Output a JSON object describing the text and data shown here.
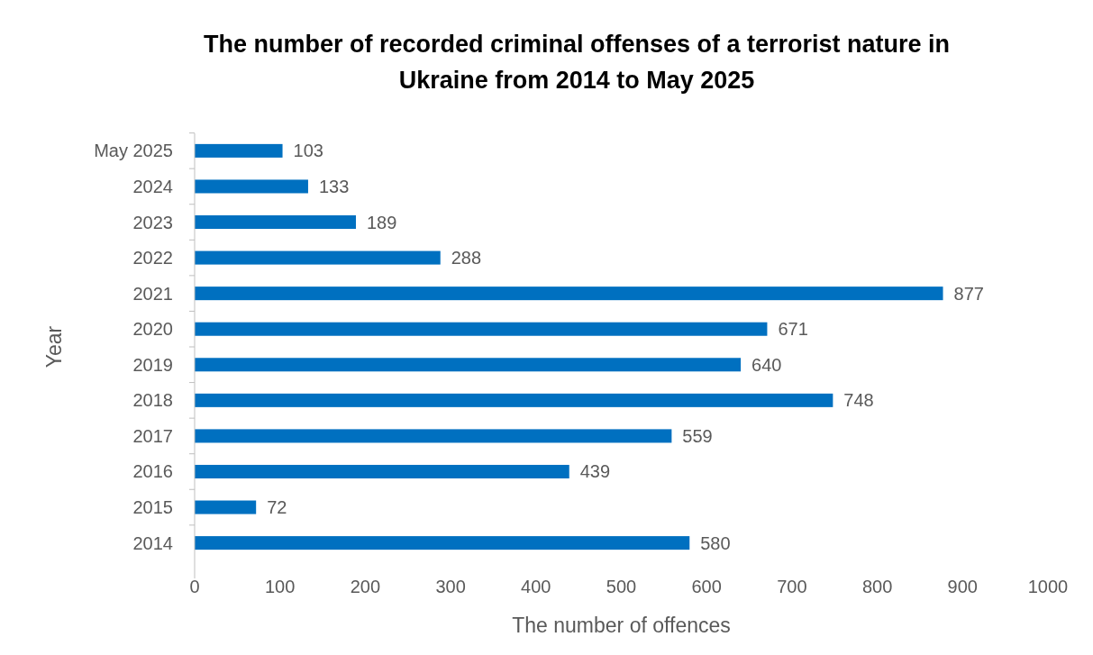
{
  "chart_data": {
    "type": "bar",
    "orientation": "horizontal",
    "title": "The number of recorded criminal offenses of a terrorist nature in Ukraine from 2014 to May 2025",
    "xlabel": "The number of offences",
    "ylabel": "Year",
    "categories": [
      "May 2025",
      "2024",
      "2023",
      "2022",
      "2021",
      "2020",
      "2019",
      "2018",
      "2017",
      "2016",
      "2015",
      "2014"
    ],
    "values": [
      103,
      133,
      189,
      288,
      877,
      671,
      640,
      748,
      559,
      439,
      72,
      580
    ],
    "color": "#0070c0",
    "xlim": [
      0,
      1000
    ],
    "xticks": [
      0,
      100,
      200,
      300,
      400,
      500,
      600,
      700,
      800,
      900,
      1000
    ],
    "data_labels": true,
    "grid": false
  }
}
